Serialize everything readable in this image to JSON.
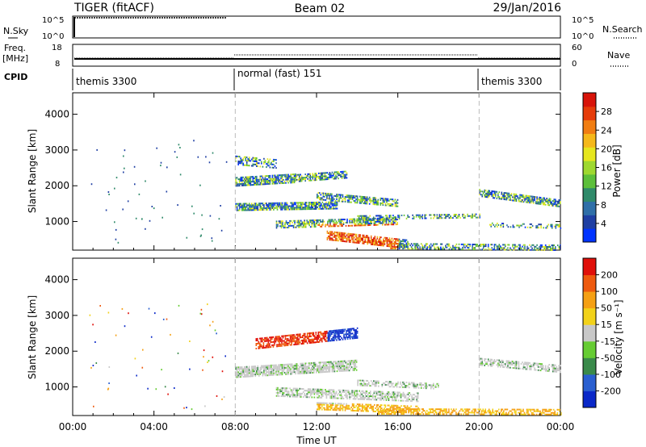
{
  "header": {
    "title": "TIGER (fitACF)",
    "beam": "Beam 02",
    "date": "29/Jan/2016"
  },
  "panels": {
    "nsky": {
      "label": "N.Sky",
      "ticks": [
        "10^5",
        "10^0"
      ],
      "right_label": "N.Search",
      "right_ticks": [
        "10^5",
        "10^0"
      ]
    },
    "freq": {
      "label_line1": "Freq.",
      "label_line2": "[MHz]",
      "ticks": [
        "18",
        "8"
      ],
      "right_label": "Nave",
      "right_ticks": [
        "60",
        "0"
      ]
    },
    "cpid": {
      "label": "CPID",
      "segments": [
        "themis 3300",
        "normal (fast) 151",
        "themis 3300"
      ]
    }
  },
  "chart_data": [
    {
      "type": "heatmap",
      "ylabel": "Slant Range [km]",
      "xlabel": "",
      "xlim": [
        "00:00",
        "24:00"
      ],
      "ylim": [
        200,
        4600
      ],
      "yticks": [
        "4000",
        "3000",
        "2000",
        "1000"
      ],
      "xticks": [
        "00:00",
        "04:00",
        "08:00",
        "12:00",
        "16:00",
        "20:00",
        "00:00"
      ],
      "colorbar": {
        "label": "Power [dB]",
        "ticks": [
          "28",
          "24",
          "20",
          "16",
          "12",
          "8",
          "4"
        ],
        "colors": [
          "#0033ff",
          "#1f3fa3",
          "#2f6fa8",
          "#2f8a6a",
          "#5cbf3a",
          "#9ed82f",
          "#e6e61e",
          "#f5b81a",
          "#f07d12",
          "#e63c0a",
          "#d8140a"
        ]
      }
    },
    {
      "type": "heatmap",
      "ylabel": "Slant Range [km]",
      "xlabel": "Time UT",
      "xlim": [
        "00:00",
        "24:00"
      ],
      "ylim": [
        200,
        4600
      ],
      "yticks": [
        "4000",
        "3000",
        "2000",
        "1000"
      ],
      "xticks": [
        "00:00",
        "04:00",
        "08:00",
        "12:00",
        "16:00",
        "20:00",
        "00:00"
      ],
      "colorbar": {
        "label": "Velocity [m s⁻¹]",
        "ticks": [
          "200",
          "100",
          "50",
          "15",
          "-15",
          "-50",
          "-100",
          "-200"
        ],
        "colors": [
          "#0a28c8",
          "#2a5fd0",
          "#3a8a4a",
          "#66cc33",
          "#c8c8c8",
          "#f2d21a",
          "#f5a014",
          "#ee5a0e",
          "#e0100a"
        ]
      }
    }
  ]
}
